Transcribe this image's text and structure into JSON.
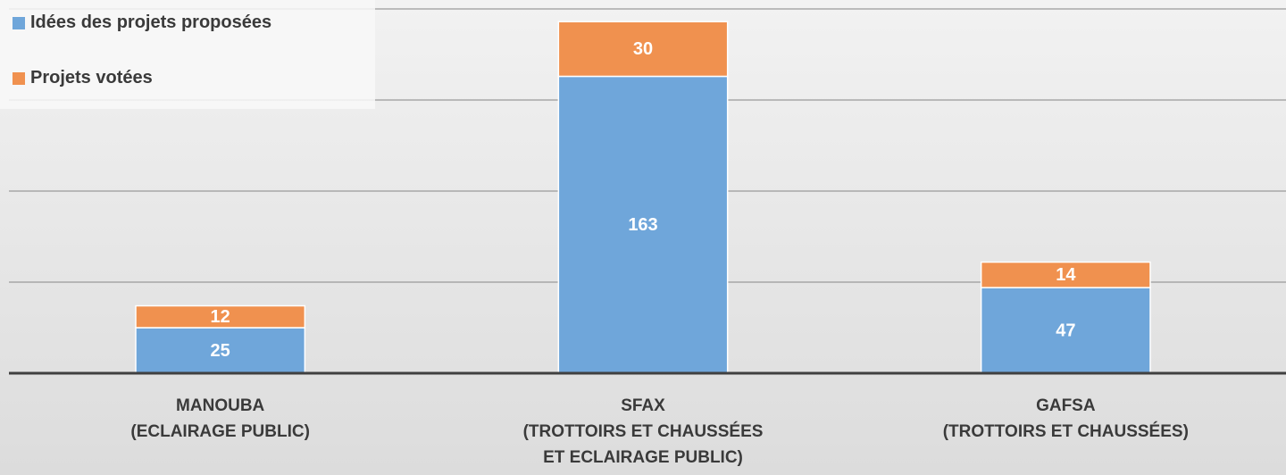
{
  "chart_data": {
    "type": "stacked_bar",
    "categories": [
      "MANOUBA\n(ECLAIRAGE PUBLIC)",
      "SFAX\n(TROTTOIRS ET CHAUSSÉES\nET ECLAIRAGE PUBLIC)",
      "GAFSA\n(TROTTOIRS ET CHAUSSÉES)"
    ],
    "series": [
      {
        "name": "Idées des projets proposées",
        "color": "#6fa6da",
        "values": [
          25,
          163,
          47
        ]
      },
      {
        "name": "Projets votées",
        "color": "#f0914f",
        "values": [
          12,
          30,
          14
        ]
      }
    ],
    "ylim": [
      0,
      200
    ],
    "yticks": [
      0,
      50,
      100,
      150,
      200
    ],
    "grid": true,
    "legend": "top-left"
  }
}
